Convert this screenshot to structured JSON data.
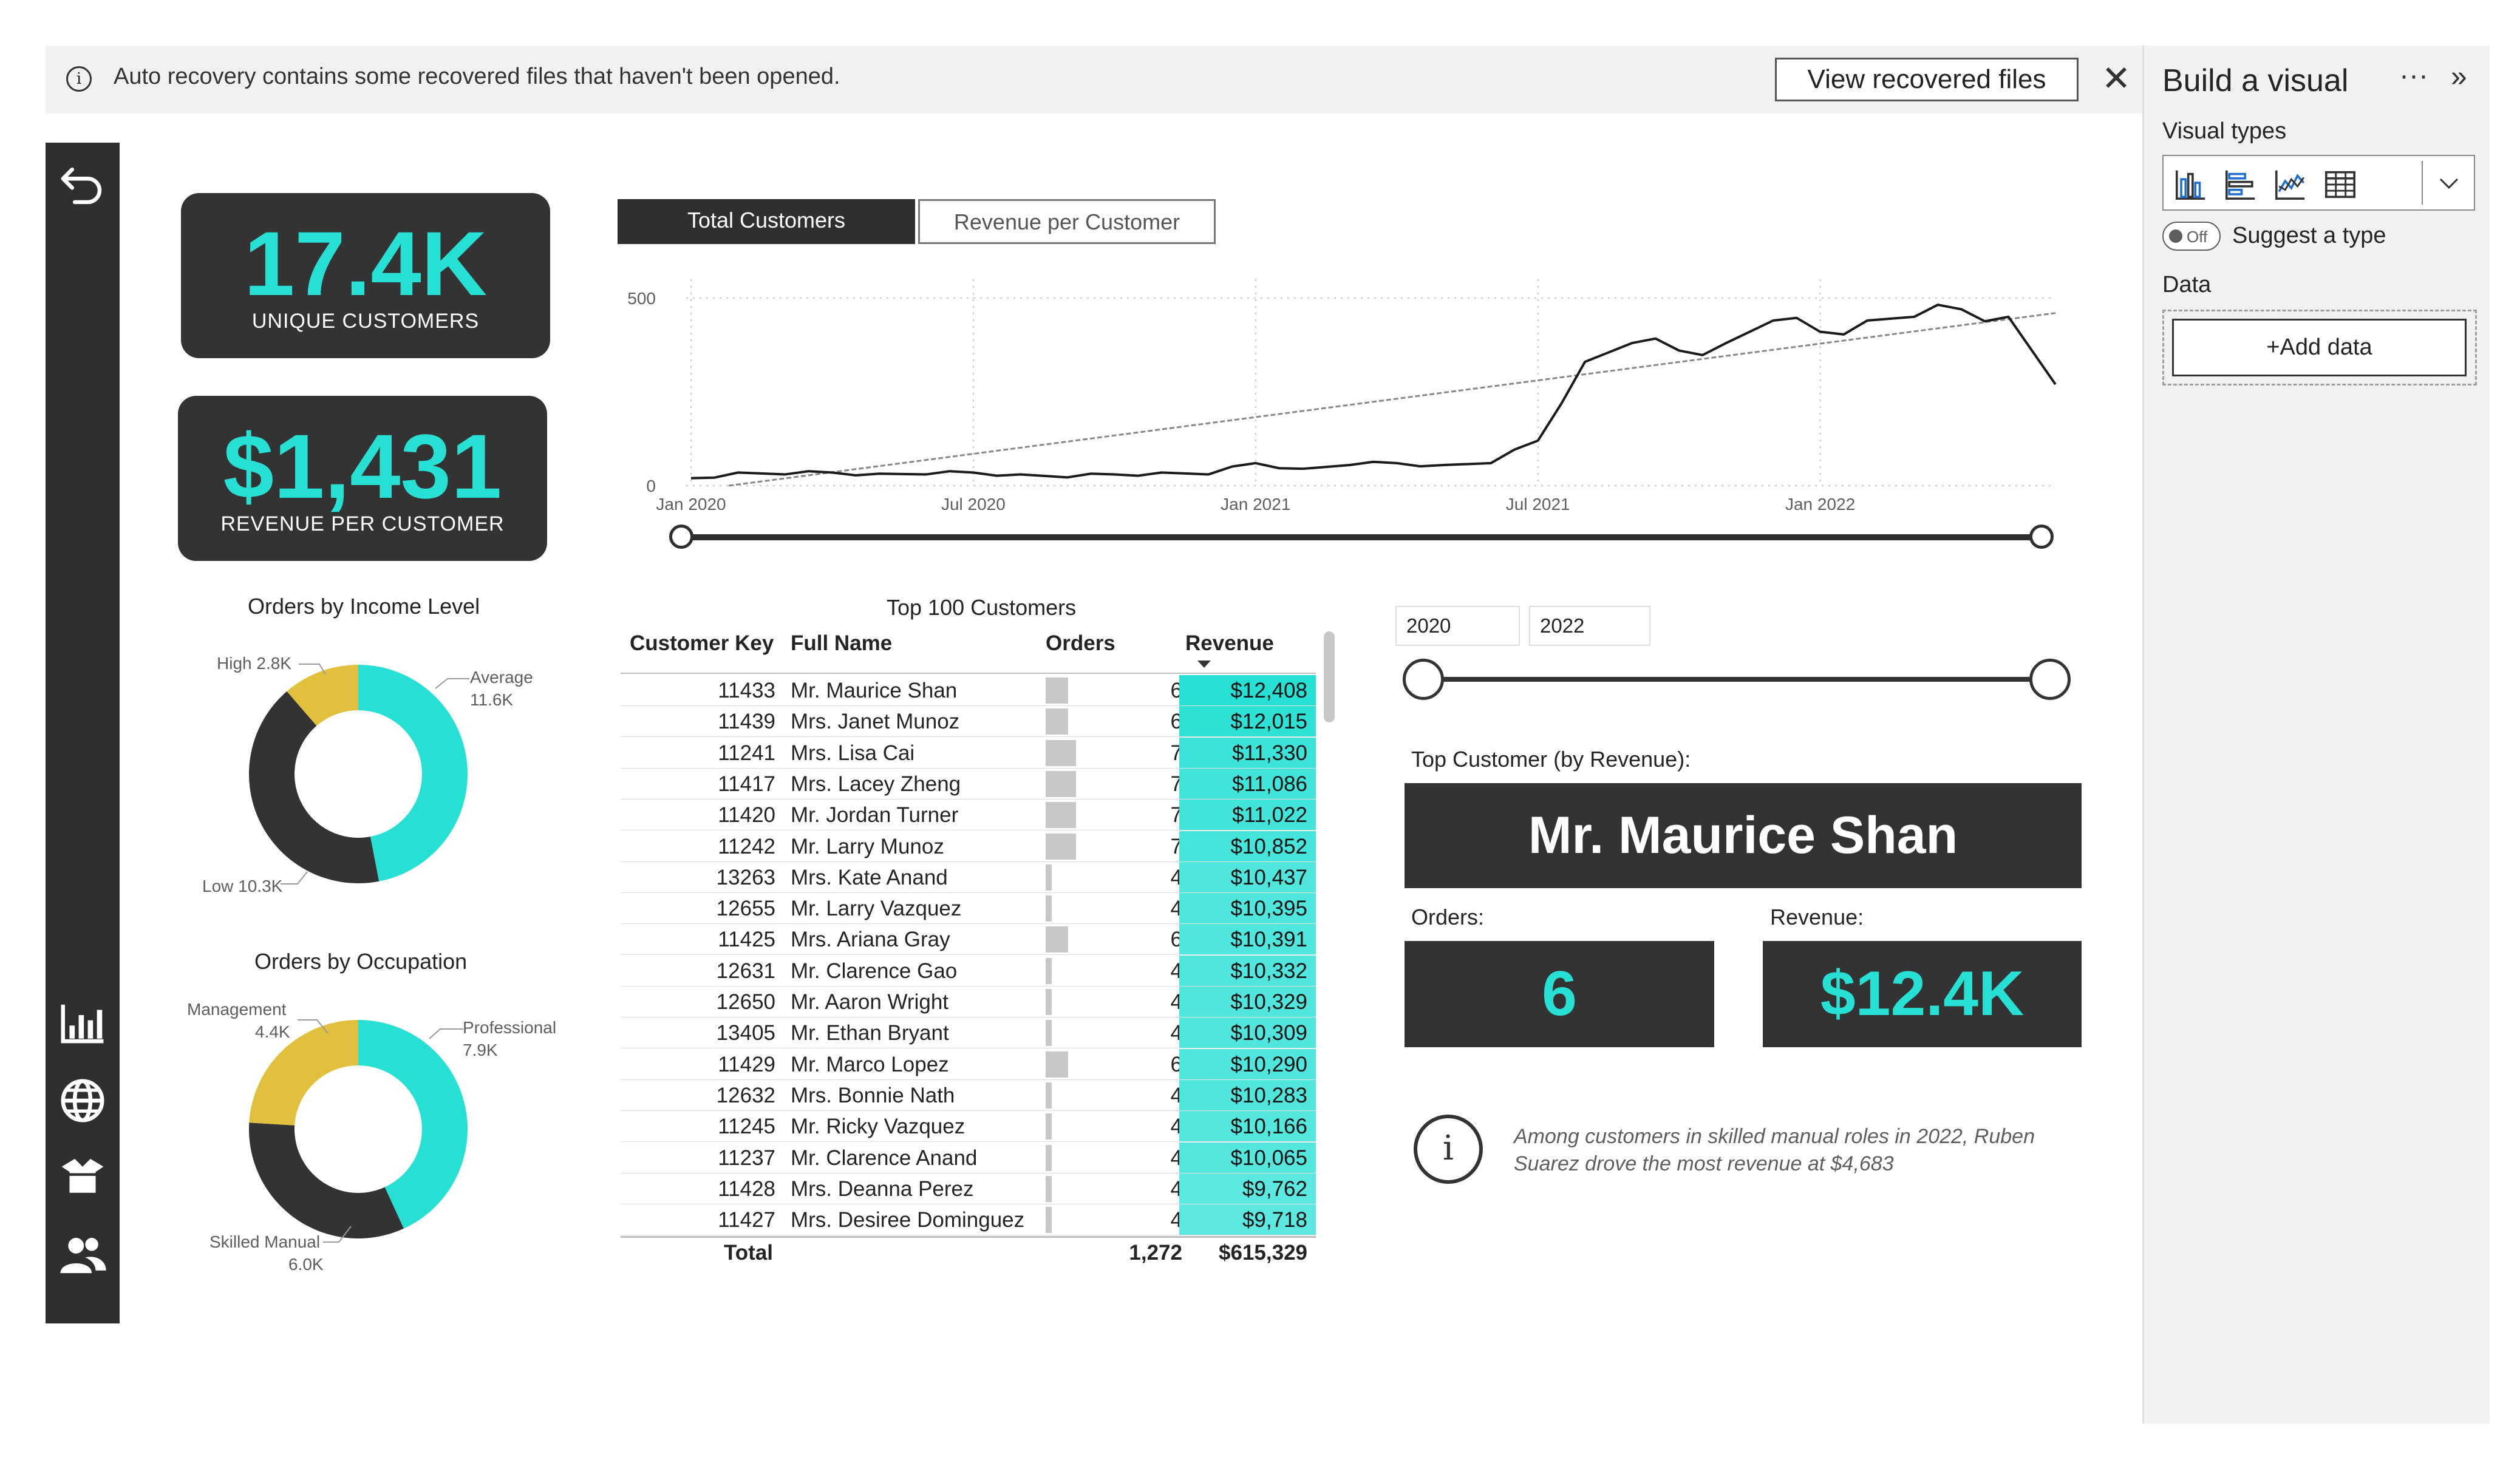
{
  "notification": {
    "message": "Auto recovery contains some recovered files that haven't been opened.",
    "button": "View recovered files"
  },
  "kpis": {
    "customers_value": "17.4K",
    "customers_label": "UNIQUE CUSTOMERS",
    "revenue_value": "$1,431",
    "revenue_label": "REVENUE PER CUSTOMER"
  },
  "tabs": [
    "Total Customers",
    "Revenue per Customer"
  ],
  "line_chart": {
    "y_ticks": [
      "500",
      "0"
    ],
    "x_ticks": [
      "Jan 2020",
      "Jul 2020",
      "Jan 2021",
      "Jul 2021",
      "Jan 2022"
    ]
  },
  "income_donut": {
    "title": "Orders by Income Level",
    "labels": {
      "high": "High 2.8K",
      "average": "Average",
      "average_value": "11.6K",
      "low": "Low 10.3K"
    }
  },
  "occupation_donut": {
    "title": "Orders by Occupation",
    "labels": {
      "management": "Management",
      "management_value": "4.4K",
      "professional": "Professional",
      "professional_value": "7.9K",
      "skilled": "Skilled Manual",
      "skilled_value": "6.0K"
    }
  },
  "chart_data": [
    {
      "type": "line",
      "title": "",
      "x": [
        "2020-01",
        "2020-02",
        "2020-03",
        "2020-04",
        "2020-05",
        "2020-06",
        "2020-07",
        "2020-08",
        "2020-09",
        "2020-10",
        "2020-11",
        "2020-12",
        "2021-01",
        "2021-02",
        "2021-03",
        "2021-04",
        "2021-05",
        "2021-06",
        "2021-07",
        "2021-08",
        "2021-09",
        "2021-10",
        "2021-11",
        "2021-12",
        "2022-01",
        "2022-02",
        "2022-03",
        "2022-04",
        "2022-05",
        "2022-06"
      ],
      "series": [
        {
          "values": [
            20,
            35,
            30,
            35,
            32,
            30,
            35,
            30,
            22,
            30,
            35,
            30,
            60,
            45,
            55,
            60,
            55,
            60,
            120,
            330,
            380,
            360,
            380,
            440,
            410,
            440,
            450,
            470,
            450,
            270
          ]
        }
      ],
      "trend": [
        -10,
        460
      ],
      "ylim": [
        0,
        550
      ],
      "x_ticks": [
        "Jan 2020",
        "Jul 2020",
        "Jan 2021",
        "Jul 2021",
        "Jan 2022"
      ],
      "y_ticks": [
        0,
        500
      ]
    },
    {
      "type": "pie",
      "title": "Orders by Income Level",
      "categories": [
        "Average",
        "Low",
        "High"
      ],
      "values": [
        11.6,
        10.3,
        2.8
      ],
      "colors": [
        "#26e0d3",
        "#333333",
        "#e0c03c"
      ]
    },
    {
      "type": "pie",
      "title": "Orders by Occupation",
      "categories": [
        "Professional",
        "Skilled Manual",
        "Management"
      ],
      "values": [
        7.9,
        6.0,
        4.4
      ],
      "colors": [
        "#26e0d3",
        "#333333",
        "#e0c03c"
      ]
    }
  ],
  "table": {
    "title": "Top 100 Customers",
    "columns": [
      "Customer Key",
      "Full Name",
      "Orders",
      "Revenue"
    ],
    "rows": [
      {
        "key": "11433",
        "name": "Mr. Maurice Shan",
        "orders": "6",
        "revenue": "$12,408",
        "rev": 12408
      },
      {
        "key": "11439",
        "name": "Mrs. Janet Munoz",
        "orders": "6",
        "revenue": "$12,015",
        "rev": 12015
      },
      {
        "key": "11241",
        "name": "Mrs. Lisa Cai",
        "orders": "7",
        "revenue": "$11,330",
        "rev": 11330
      },
      {
        "key": "11417",
        "name": "Mrs. Lacey Zheng",
        "orders": "7",
        "revenue": "$11,086",
        "rev": 11086
      },
      {
        "key": "11420",
        "name": "Mr. Jordan Turner",
        "orders": "7",
        "revenue": "$11,022",
        "rev": 11022
      },
      {
        "key": "11242",
        "name": "Mr. Larry Munoz",
        "orders": "7",
        "revenue": "$10,852",
        "rev": 10852
      },
      {
        "key": "13263",
        "name": "Mrs. Kate Anand",
        "orders": "4",
        "revenue": "$10,437",
        "rev": 10437
      },
      {
        "key": "12655",
        "name": "Mr. Larry Vazquez",
        "orders": "4",
        "revenue": "$10,395",
        "rev": 10395
      },
      {
        "key": "11425",
        "name": "Mrs. Ariana Gray",
        "orders": "6",
        "revenue": "$10,391",
        "rev": 10391
      },
      {
        "key": "12631",
        "name": "Mr. Clarence Gao",
        "orders": "4",
        "revenue": "$10,332",
        "rev": 10332
      },
      {
        "key": "12650",
        "name": "Mr. Aaron Wright",
        "orders": "4",
        "revenue": "$10,329",
        "rev": 10329
      },
      {
        "key": "13405",
        "name": "Mr. Ethan Bryant",
        "orders": "4",
        "revenue": "$10,309",
        "rev": 10309
      },
      {
        "key": "11429",
        "name": "Mr. Marco Lopez",
        "orders": "6",
        "revenue": "$10,290",
        "rev": 10290
      },
      {
        "key": "12632",
        "name": "Mrs. Bonnie Nath",
        "orders": "4",
        "revenue": "$10,283",
        "rev": 10283
      },
      {
        "key": "11245",
        "name": "Mr. Ricky Vazquez",
        "orders": "4",
        "revenue": "$10,166",
        "rev": 10166
      },
      {
        "key": "11237",
        "name": "Mr. Clarence Anand",
        "orders": "4",
        "revenue": "$10,065",
        "rev": 10065
      },
      {
        "key": "11428",
        "name": "Mrs. Deanna Perez",
        "orders": "4",
        "revenue": "$9,762",
        "rev": 9762
      },
      {
        "key": "11427",
        "name": "Mrs. Desiree Dominguez",
        "orders": "4",
        "revenue": "$9,718",
        "rev": 9718
      }
    ],
    "total_label": "Total",
    "total_orders": "1,272",
    "total_revenue": "$615,329"
  },
  "date_slicer": {
    "start": "2020",
    "end": "2022"
  },
  "top_customer": {
    "label": "Top Customer (by Revenue):",
    "name": "Mr. Maurice Shan",
    "orders_label": "Orders:",
    "orders_value": "6",
    "revenue_label": "Revenue:",
    "revenue_value": "$12.4K"
  },
  "insight": "Among customers in skilled manual roles in 2022, Ruben Suarez drove the most revenue at $4,683",
  "panel": {
    "title": "Build a visual",
    "visual_types_label": "Visual types",
    "toggle_state": "Off",
    "suggest_label": "Suggest a type",
    "data_label": "Data",
    "add_data": "+Add data"
  },
  "colors": {
    "accent": "#26e0d3",
    "dark": "#333333",
    "gold": "#e0c03c"
  }
}
